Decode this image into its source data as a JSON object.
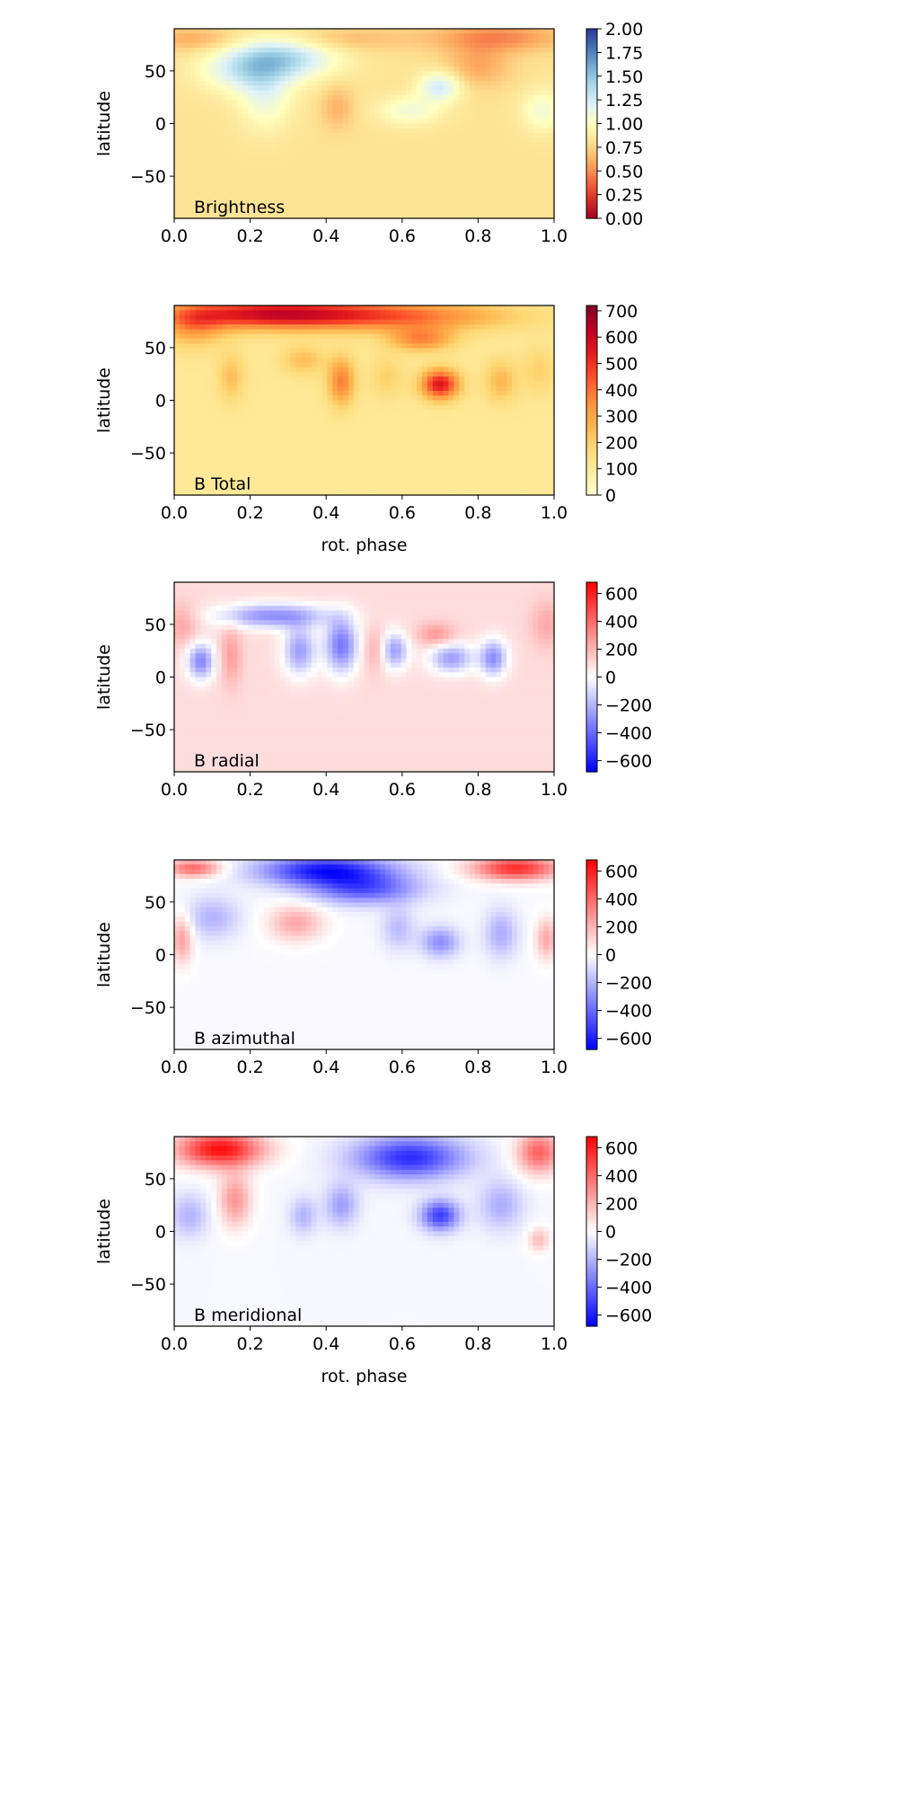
{
  "figure": {
    "shared_xlabel": "rot. phase",
    "shared_ylabel": "latitude"
  },
  "chart_data": [
    {
      "type": "heatmap",
      "panel_label": "Brightness",
      "xlabel": "",
      "ylabel": "latitude",
      "xlim": [
        0.0,
        1.0
      ],
      "ylim": [
        -90,
        90
      ],
      "xticks": [
        "0.0",
        "0.2",
        "0.4",
        "0.6",
        "0.8",
        "1.0"
      ],
      "yticks": [
        "50",
        "0",
        "−50"
      ],
      "colormap": "RdYlBu",
      "clim": [
        0.0,
        2.0
      ],
      "colorbar_ticks": [
        "0.00",
        "0.25",
        "0.50",
        "0.75",
        "1.00",
        "1.25",
        "1.50",
        "1.75",
        "2.00"
      ],
      "background_value": 0.82,
      "features": [
        {
          "phase": 0.28,
          "lat": 62,
          "value": 1.38,
          "w": 0.1,
          "h": 14
        },
        {
          "phase": 0.18,
          "lat": 48,
          "value": 1.12,
          "w": 0.08,
          "h": 14
        },
        {
          "phase": 0.24,
          "lat": 25,
          "value": 1.1,
          "w": 0.05,
          "h": 22
        },
        {
          "phase": 0.7,
          "lat": 35,
          "value": 1.25,
          "w": 0.04,
          "h": 10
        },
        {
          "phase": 0.62,
          "lat": 12,
          "value": 1.08,
          "w": 0.06,
          "h": 10
        },
        {
          "phase": 0.97,
          "lat": 12,
          "value": 1.08,
          "w": 0.04,
          "h": 14
        },
        {
          "phase": 0.85,
          "lat": 82,
          "value": 0.48,
          "w": 0.12,
          "h": 10
        },
        {
          "phase": 0.8,
          "lat": 55,
          "value": 0.58,
          "w": 0.06,
          "h": 14
        },
        {
          "phase": 0.45,
          "lat": 80,
          "value": 0.65,
          "w": 0.12,
          "h": 8
        },
        {
          "phase": 0.43,
          "lat": 15,
          "value": 0.62,
          "w": 0.03,
          "h": 14
        },
        {
          "phase": 0.05,
          "lat": 80,
          "value": 0.6,
          "w": 0.08,
          "h": 8
        }
      ]
    },
    {
      "type": "heatmap",
      "panel_label": "B Total",
      "xlabel": "rot. phase",
      "ylabel": "latitude",
      "xlim": [
        0.0,
        1.0
      ],
      "ylim": [
        -90,
        90
      ],
      "xticks": [
        "0.0",
        "0.2",
        "0.4",
        "0.6",
        "0.8",
        "1.0"
      ],
      "yticks": [
        "50",
        "0",
        "−50"
      ],
      "colormap": "YlOrRd",
      "clim": [
        0,
        720
      ],
      "colorbar_ticks": [
        "0",
        "100",
        "200",
        "300",
        "400",
        "500",
        "600",
        "700"
      ],
      "background_value": 110,
      "features": [
        {
          "phase": 0.25,
          "lat": 82,
          "value": 560,
          "w": 0.18,
          "h": 10
        },
        {
          "phase": 0.6,
          "lat": 80,
          "value": 380,
          "w": 0.2,
          "h": 10
        },
        {
          "phase": 0.05,
          "lat": 70,
          "value": 300,
          "w": 0.06,
          "h": 14
        },
        {
          "phase": 0.65,
          "lat": 58,
          "value": 360,
          "w": 0.06,
          "h": 8
        },
        {
          "phase": 0.7,
          "lat": 15,
          "value": 560,
          "w": 0.035,
          "h": 10
        },
        {
          "phase": 0.44,
          "lat": 18,
          "value": 380,
          "w": 0.025,
          "h": 16
        },
        {
          "phase": 0.15,
          "lat": 22,
          "value": 240,
          "w": 0.025,
          "h": 16
        },
        {
          "phase": 0.34,
          "lat": 38,
          "value": 240,
          "w": 0.04,
          "h": 10
        },
        {
          "phase": 0.86,
          "lat": 18,
          "value": 260,
          "w": 0.03,
          "h": 14
        },
        {
          "phase": 0.96,
          "lat": 28,
          "value": 200,
          "w": 0.03,
          "h": 16
        },
        {
          "phase": 0.56,
          "lat": 22,
          "value": 200,
          "w": 0.03,
          "h": 14
        }
      ]
    },
    {
      "type": "heatmap",
      "panel_label": "B radial",
      "xlabel": "",
      "ylabel": "latitude",
      "xlim": [
        0.0,
        1.0
      ],
      "ylim": [
        -90,
        90
      ],
      "xticks": [
        "0.0",
        "0.2",
        "0.4",
        "0.6",
        "0.8",
        "1.0"
      ],
      "yticks": [
        "50",
        "0",
        "−50"
      ],
      "colormap": "bwr",
      "clim": [
        -680,
        680
      ],
      "colorbar_ticks": [
        "−600",
        "−400",
        "−200",
        "0",
        "200",
        "400",
        "600"
      ],
      "background_value": 90,
      "features": [
        {
          "phase": 0.26,
          "lat": 58,
          "value": -300,
          "w": 0.1,
          "h": 8
        },
        {
          "phase": 0.44,
          "lat": 30,
          "value": -360,
          "w": 0.03,
          "h": 18
        },
        {
          "phase": 0.07,
          "lat": 15,
          "value": -320,
          "w": 0.025,
          "h": 12
        },
        {
          "phase": 0.33,
          "lat": 25,
          "value": -260,
          "w": 0.03,
          "h": 16
        },
        {
          "phase": 0.73,
          "lat": 18,
          "value": -260,
          "w": 0.04,
          "h": 10
        },
        {
          "phase": 0.84,
          "lat": 18,
          "value": -300,
          "w": 0.025,
          "h": 12
        },
        {
          "phase": 0.58,
          "lat": 25,
          "value": -260,
          "w": 0.025,
          "h": 12
        },
        {
          "phase": 0.15,
          "lat": 20,
          "value": 260,
          "w": 0.02,
          "h": 20
        },
        {
          "phase": 0.02,
          "lat": 50,
          "value": 240,
          "w": 0.03,
          "h": 14
        },
        {
          "phase": 0.69,
          "lat": 40,
          "value": 280,
          "w": 0.035,
          "h": 8
        },
        {
          "phase": 0.53,
          "lat": 25,
          "value": 230,
          "w": 0.02,
          "h": 14
        },
        {
          "phase": 0.98,
          "lat": 50,
          "value": 230,
          "w": 0.03,
          "h": 16
        }
      ]
    },
    {
      "type": "heatmap",
      "panel_label": "B azimuthal",
      "xlabel": "",
      "ylabel": "latitude",
      "xlim": [
        0.0,
        1.0
      ],
      "ylim": [
        -90,
        90
      ],
      "xticks": [
        "0.0",
        "0.2",
        "0.4",
        "0.6",
        "0.8",
        "1.0"
      ],
      "yticks": [
        "50",
        "0",
        "−50"
      ],
      "colormap": "bwr",
      "clim": [
        -680,
        680
      ],
      "colorbar_ticks": [
        "−600",
        "−400",
        "−200",
        "0",
        "200",
        "400",
        "600"
      ],
      "background_value": -15,
      "features": [
        {
          "phase": 0.4,
          "lat": 80,
          "value": -620,
          "w": 0.12,
          "h": 10
        },
        {
          "phase": 0.5,
          "lat": 62,
          "value": -420,
          "w": 0.1,
          "h": 10
        },
        {
          "phase": 0.9,
          "lat": 82,
          "value": 560,
          "w": 0.08,
          "h": 8
        },
        {
          "phase": 0.05,
          "lat": 82,
          "value": 400,
          "w": 0.05,
          "h": 6
        },
        {
          "phase": 0.32,
          "lat": 30,
          "value": 230,
          "w": 0.05,
          "h": 12
        },
        {
          "phase": 0.02,
          "lat": 15,
          "value": 260,
          "w": 0.02,
          "h": 16
        },
        {
          "phase": 0.98,
          "lat": 15,
          "value": 230,
          "w": 0.02,
          "h": 14
        },
        {
          "phase": 0.7,
          "lat": 12,
          "value": -300,
          "w": 0.035,
          "h": 10
        },
        {
          "phase": 0.1,
          "lat": 35,
          "value": -200,
          "w": 0.05,
          "h": 14
        },
        {
          "phase": 0.86,
          "lat": 20,
          "value": -220,
          "w": 0.03,
          "h": 16
        },
        {
          "phase": 0.59,
          "lat": 25,
          "value": -180,
          "w": 0.03,
          "h": 14
        }
      ]
    },
    {
      "type": "heatmap",
      "panel_label": "B meridional",
      "xlabel": "rot. phase",
      "ylabel": "latitude",
      "xlim": [
        0.0,
        1.0
      ],
      "ylim": [
        -90,
        90
      ],
      "xticks": [
        "0.0",
        "0.2",
        "0.4",
        "0.6",
        "0.8",
        "1.0"
      ],
      "yticks": [
        "50",
        "0",
        "−50"
      ],
      "colormap": "bwr",
      "clim": [
        -680,
        680
      ],
      "colorbar_ticks": [
        "−600",
        "−400",
        "−200",
        "0",
        "200",
        "400",
        "600"
      ],
      "background_value": -20,
      "features": [
        {
          "phase": 0.12,
          "lat": 78,
          "value": 640,
          "w": 0.08,
          "h": 12
        },
        {
          "phase": 0.96,
          "lat": 75,
          "value": 420,
          "w": 0.04,
          "h": 14
        },
        {
          "phase": 0.62,
          "lat": 70,
          "value": -560,
          "w": 0.1,
          "h": 14
        },
        {
          "phase": 0.7,
          "lat": 15,
          "value": -520,
          "w": 0.035,
          "h": 10
        },
        {
          "phase": 0.44,
          "lat": 25,
          "value": -260,
          "w": 0.03,
          "h": 14
        },
        {
          "phase": 0.16,
          "lat": 30,
          "value": 280,
          "w": 0.03,
          "h": 18
        },
        {
          "phase": 0.04,
          "lat": 15,
          "value": -200,
          "w": 0.035,
          "h": 14
        },
        {
          "phase": 0.34,
          "lat": 15,
          "value": -200,
          "w": 0.025,
          "h": 12
        },
        {
          "phase": 0.86,
          "lat": 25,
          "value": -220,
          "w": 0.04,
          "h": 16
        },
        {
          "phase": 0.96,
          "lat": -8,
          "value": 180,
          "w": 0.02,
          "h": 8
        }
      ]
    }
  ]
}
